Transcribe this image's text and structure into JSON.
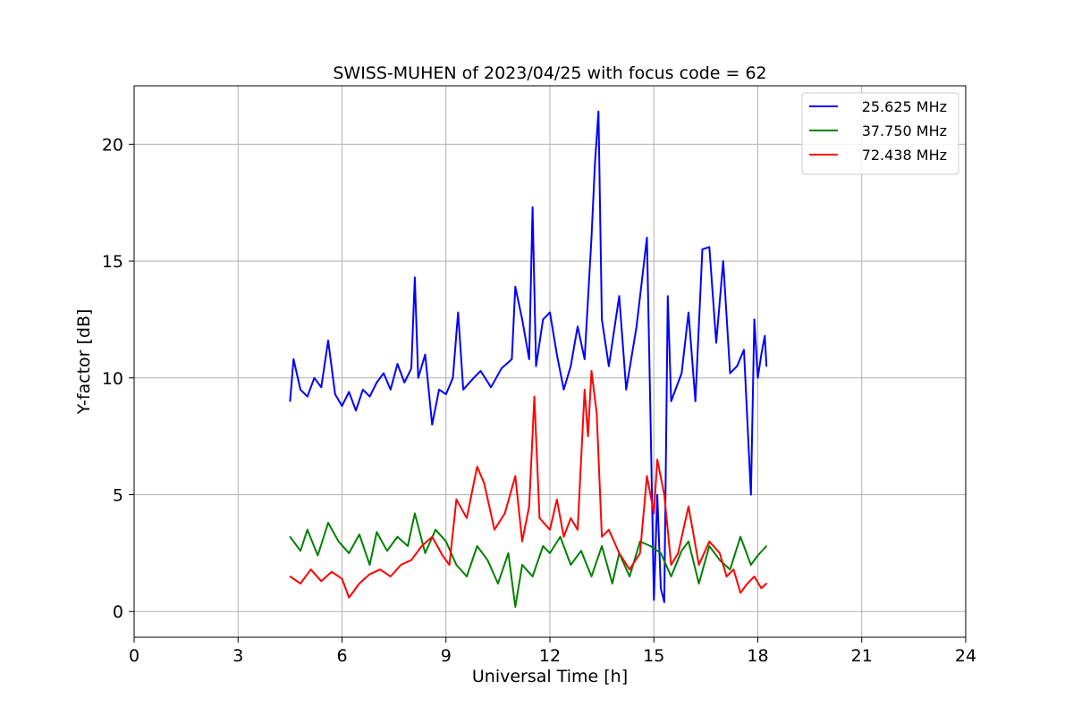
{
  "chart_data": {
    "type": "line",
    "title": "SWISS-MUHEN of 2023/04/25 with focus code = 62",
    "xlabel": "Universal Time [h]",
    "ylabel": "Y-factor [dB]",
    "xlim": [
      0,
      24
    ],
    "ylim": [
      -1.1,
      22.5
    ],
    "xticks": [
      0,
      3,
      6,
      9,
      12,
      15,
      18,
      21,
      24
    ],
    "yticks": [
      0,
      5,
      10,
      15,
      20
    ],
    "grid": true,
    "legend_position": "top-right",
    "series": [
      {
        "name": "25.625 MHz",
        "color": "#0000ff",
        "x": [
          4.5,
          4.6,
          4.8,
          5.0,
          5.2,
          5.4,
          5.6,
          5.8,
          6.0,
          6.2,
          6.4,
          6.6,
          6.8,
          7.0,
          7.2,
          7.4,
          7.6,
          7.8,
          8.0,
          8.1,
          8.2,
          8.4,
          8.6,
          8.8,
          9.0,
          9.2,
          9.35,
          9.5,
          9.8,
          10.0,
          10.3,
          10.6,
          10.9,
          11.0,
          11.2,
          11.4,
          11.5,
          11.6,
          11.8,
          12.0,
          12.2,
          12.4,
          12.6,
          12.8,
          13.0,
          13.2,
          13.3,
          13.4,
          13.5,
          13.7,
          14.0,
          14.2,
          14.5,
          14.8,
          14.9,
          15.0,
          15.1,
          15.2,
          15.3,
          15.4,
          15.5,
          15.8,
          16.0,
          16.2,
          16.4,
          16.6,
          16.8,
          17.0,
          17.2,
          17.4,
          17.6,
          17.8,
          17.9,
          18.0,
          18.1,
          18.2,
          18.25
        ],
        "y": [
          9.0,
          10.8,
          9.5,
          9.2,
          10.0,
          9.6,
          11.6,
          9.3,
          8.8,
          9.4,
          8.6,
          9.5,
          9.2,
          9.8,
          10.2,
          9.5,
          10.6,
          9.8,
          10.4,
          14.3,
          10.0,
          11.0,
          8.0,
          9.5,
          9.3,
          10.0,
          12.8,
          9.5,
          10.0,
          10.3,
          9.6,
          10.4,
          10.8,
          13.9,
          12.5,
          10.8,
          17.3,
          10.5,
          12.5,
          12.8,
          11.0,
          9.5,
          10.5,
          12.2,
          10.8,
          16.0,
          19.2,
          21.4,
          12.5,
          10.5,
          13.5,
          9.5,
          12.2,
          16.0,
          8.5,
          0.5,
          5.0,
          1.0,
          0.4,
          13.5,
          9.0,
          10.2,
          12.8,
          9.0,
          15.5,
          15.6,
          11.5,
          15.0,
          10.2,
          10.5,
          11.2,
          5.0,
          12.5,
          10.0,
          11.0,
          11.8,
          10.5
        ]
      },
      {
        "name": "37.750 MHz",
        "color": "#008000",
        "x": [
          4.5,
          4.8,
          5.0,
          5.3,
          5.6,
          5.9,
          6.2,
          6.5,
          6.8,
          7.0,
          7.3,
          7.6,
          7.9,
          8.1,
          8.4,
          8.7,
          9.0,
          9.3,
          9.6,
          9.9,
          10.2,
          10.5,
          10.8,
          11.0,
          11.2,
          11.5,
          11.8,
          12.0,
          12.3,
          12.6,
          12.9,
          13.2,
          13.5,
          13.8,
          14.0,
          14.3,
          14.6,
          14.9,
          15.2,
          15.5,
          15.8,
          16.0,
          16.3,
          16.6,
          16.9,
          17.2,
          17.5,
          17.8,
          18.0,
          18.25
        ],
        "y": [
          3.2,
          2.6,
          3.5,
          2.4,
          3.8,
          3.0,
          2.5,
          3.3,
          2.0,
          3.4,
          2.6,
          3.2,
          2.8,
          4.2,
          2.5,
          3.5,
          3.0,
          2.0,
          1.5,
          2.8,
          2.2,
          1.2,
          2.5,
          0.2,
          2.0,
          1.5,
          2.8,
          2.5,
          3.2,
          2.0,
          2.6,
          1.5,
          2.8,
          1.2,
          2.5,
          1.5,
          3.0,
          2.8,
          2.5,
          1.5,
          2.6,
          3.0,
          1.2,
          2.8,
          2.2,
          1.8,
          3.2,
          2.0,
          2.4,
          2.8
        ]
      },
      {
        "name": "72.438 MHz",
        "color": "#ff0000",
        "x": [
          4.5,
          4.8,
          5.1,
          5.4,
          5.7,
          6.0,
          6.2,
          6.5,
          6.8,
          7.1,
          7.4,
          7.7,
          8.0,
          8.3,
          8.6,
          8.9,
          9.1,
          9.3,
          9.6,
          9.9,
          10.1,
          10.4,
          10.7,
          11.0,
          11.2,
          11.4,
          11.55,
          11.7,
          12.0,
          12.2,
          12.4,
          12.6,
          12.8,
          13.0,
          13.1,
          13.2,
          13.35,
          13.5,
          13.7,
          14.0,
          14.3,
          14.6,
          14.8,
          15.0,
          15.1,
          15.3,
          15.5,
          15.7,
          16.0,
          16.3,
          16.6,
          16.9,
          17.1,
          17.3,
          17.5,
          17.7,
          17.9,
          18.1,
          18.25
        ],
        "y": [
          1.5,
          1.2,
          1.8,
          1.3,
          1.7,
          1.4,
          0.6,
          1.2,
          1.6,
          1.8,
          1.5,
          2.0,
          2.2,
          2.8,
          3.2,
          2.4,
          2.0,
          4.8,
          4.0,
          6.2,
          5.5,
          3.5,
          4.2,
          5.8,
          3.0,
          4.5,
          9.2,
          4.0,
          3.5,
          4.8,
          3.2,
          4.0,
          3.5,
          9.5,
          7.5,
          10.3,
          8.5,
          3.2,
          3.5,
          2.5,
          1.8,
          2.5,
          5.8,
          4.2,
          6.5,
          5.0,
          2.0,
          2.5,
          4.5,
          2.0,
          3.0,
          2.5,
          1.5,
          1.8,
          0.8,
          1.2,
          1.5,
          1.0,
          1.2
        ]
      }
    ]
  }
}
